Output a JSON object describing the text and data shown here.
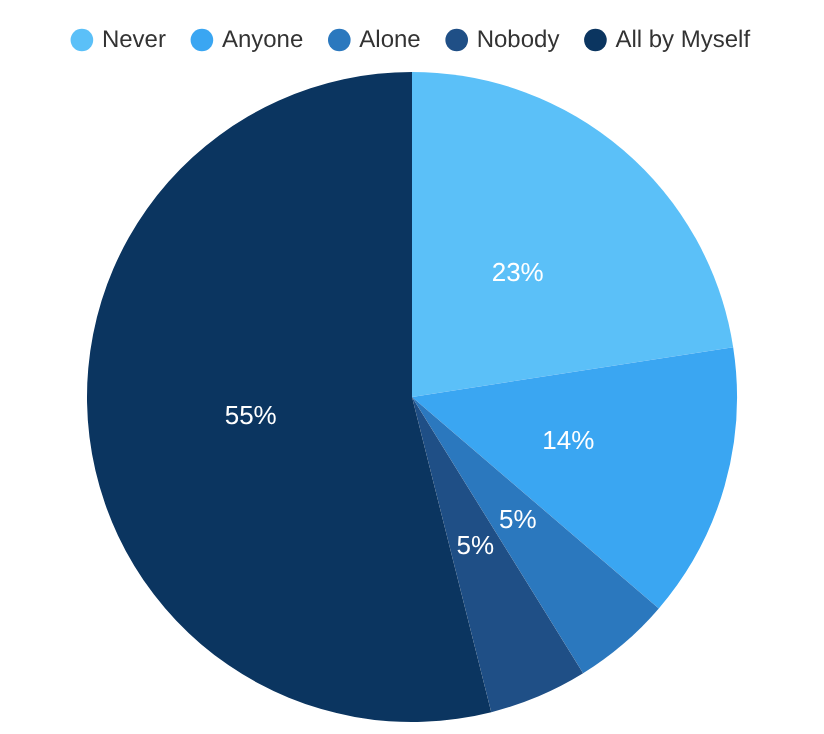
{
  "chart_data": {
    "type": "pie",
    "categories": [
      "Never",
      "Anyone",
      "Alone",
      "Nobody",
      "All by Myself"
    ],
    "values": [
      23,
      14,
      5,
      5,
      55
    ],
    "colors": [
      "#5bc0f8",
      "#3aa6f2",
      "#2b78be",
      "#1f4f86",
      "#0b3560"
    ],
    "value_labels": [
      "23%",
      "14%",
      "5%",
      "5%",
      "55%"
    ],
    "legend": "top"
  }
}
